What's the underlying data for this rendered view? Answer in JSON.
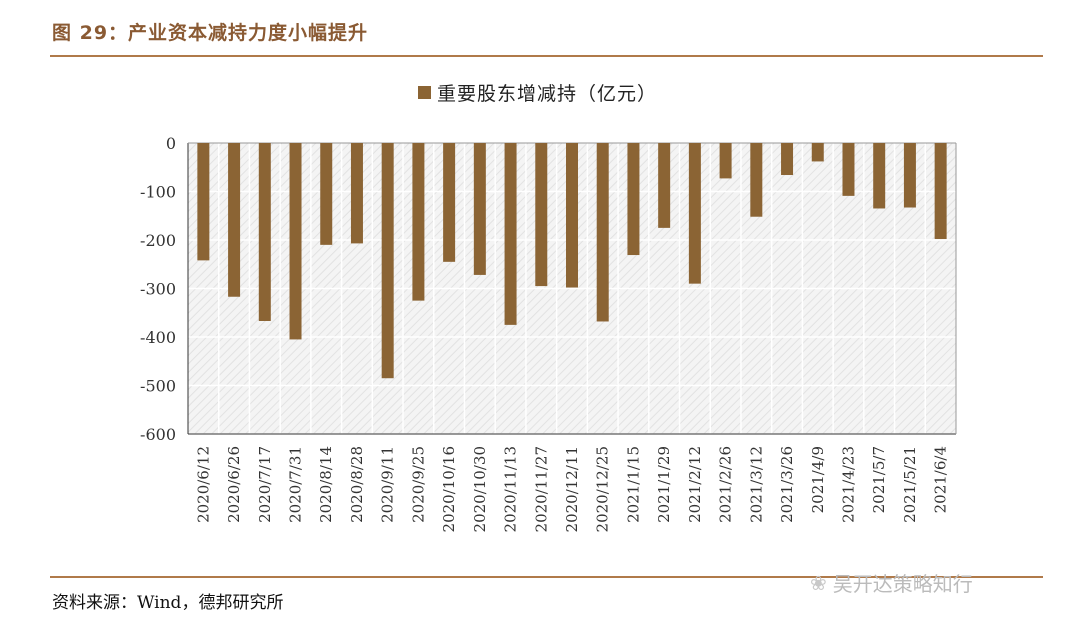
{
  "figure": {
    "title": "图 29：产业资本减持力度小幅提升",
    "source": "资料来源：Wind，德邦研究所",
    "watermark": "吴开达策略知行",
    "watermark_icon": "wechat-icon",
    "accent_color": "#b07a4a",
    "bar_color": "#8b6434"
  },
  "chart_data": {
    "type": "bar",
    "title": "",
    "xlabel": "",
    "ylabel": "",
    "ylim": [
      -600,
      0
    ],
    "yticks": [
      0,
      -100,
      -200,
      -300,
      -400,
      -500,
      -600
    ],
    "legend": {
      "position": "top-center",
      "entries": [
        "重要股东增减持（亿元）"
      ]
    },
    "categories": [
      "2020/6/12",
      "2020/6/26",
      "2020/7/17",
      "2020/7/31",
      "2020/8/14",
      "2020/8/28",
      "2020/9/11",
      "2020/9/25",
      "2020/10/16",
      "2020/10/30",
      "2020/11/13",
      "2020/11/27",
      "2020/12/11",
      "2020/12/25",
      "2021/1/15",
      "2021/1/29",
      "2021/2/12",
      "2021/2/26",
      "2021/3/12",
      "2021/3/26",
      "2021/4/9",
      "2021/4/23",
      "2021/5/7",
      "2021/5/21",
      "2021/6/4"
    ],
    "series": [
      {
        "name": "重要股东增减持（亿元）",
        "values": [
          -242,
          -317,
          -367,
          -405,
          -210,
          -207,
          -485,
          -325,
          -245,
          -272,
          -375,
          -295,
          -298,
          -368,
          -231,
          -175,
          -290,
          -73,
          -152,
          -66,
          -38,
          -109,
          -135,
          -133,
          -198
        ]
      }
    ],
    "grid": true
  }
}
